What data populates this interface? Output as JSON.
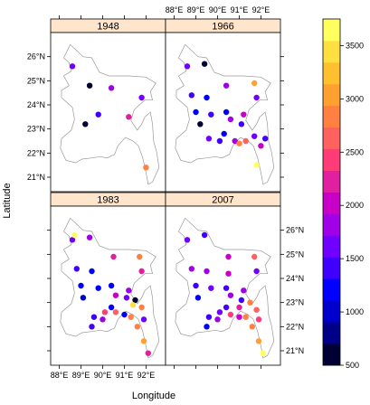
{
  "chart_data": {
    "type": "scatter",
    "xlabel": "Longitude",
    "ylabel": "Latitude",
    "xlim": [
      87.6,
      92.9
    ],
    "ylim": [
      20.4,
      27.0
    ],
    "x_ticks": [
      {
        "value": 88,
        "label": "88°E"
      },
      {
        "value": 89,
        "label": "89°E"
      },
      {
        "value": 90,
        "label": "90°E"
      },
      {
        "value": 91,
        "label": "91°E"
      },
      {
        "value": 92,
        "label": "92°E"
      }
    ],
    "y_ticks": [
      {
        "value": 21,
        "label": "21°N"
      },
      {
        "value": 22,
        "label": "22°N"
      },
      {
        "value": 23,
        "label": "23°N"
      },
      {
        "value": 24,
        "label": "24°N"
      },
      {
        "value": 25,
        "label": "25°N"
      },
      {
        "value": 26,
        "label": "26°N"
      }
    ],
    "colorbar": {
      "min": 500,
      "max": 3750,
      "ticks": [
        500,
        1000,
        1500,
        2000,
        2500,
        3000,
        3500
      ],
      "colors": [
        "#000033",
        "#000088",
        "#0000cc",
        "#0000ff",
        "#4000ff",
        "#7000ff",
        "#a000e8",
        "#c800c8",
        "#e020a0",
        "#ff3c78",
        "#ff6060",
        "#ff8040",
        "#ffa030",
        "#ffc030",
        "#ffe040",
        "#ffff60"
      ]
    },
    "panels": [
      {
        "title": "1948",
        "points": [
          {
            "lon": 88.6,
            "lat": 25.6,
            "value": 1550
          },
          {
            "lon": 89.4,
            "lat": 24.8,
            "value": 700
          },
          {
            "lon": 90.4,
            "lat": 24.7,
            "value": 1900
          },
          {
            "lon": 91.8,
            "lat": 24.3,
            "value": 1700
          },
          {
            "lon": 89.8,
            "lat": 23.6,
            "value": 1500
          },
          {
            "lon": 89.2,
            "lat": 23.2,
            "value": 600
          },
          {
            "lon": 91.2,
            "lat": 23.5,
            "value": 2300
          },
          {
            "lon": 92.0,
            "lat": 21.4,
            "value": 2900
          }
        ]
      },
      {
        "title": "1966",
        "points": [
          {
            "lon": 88.6,
            "lat": 25.6,
            "value": 1600
          },
          {
            "lon": 89.4,
            "lat": 25.7,
            "value": 600
          },
          {
            "lon": 90.4,
            "lat": 24.8,
            "value": 1800
          },
          {
            "lon": 91.7,
            "lat": 24.9,
            "value": 3000
          },
          {
            "lon": 88.8,
            "lat": 24.4,
            "value": 1400
          },
          {
            "lon": 89.5,
            "lat": 24.3,
            "value": 1200
          },
          {
            "lon": 91.8,
            "lat": 24.3,
            "value": 1700
          },
          {
            "lon": 89.0,
            "lat": 23.7,
            "value": 1300
          },
          {
            "lon": 89.7,
            "lat": 23.6,
            "value": 1500
          },
          {
            "lon": 90.4,
            "lat": 23.7,
            "value": 1200
          },
          {
            "lon": 91.2,
            "lat": 23.6,
            "value": 2000
          },
          {
            "lon": 89.2,
            "lat": 23.2,
            "value": 700
          },
          {
            "lon": 90.6,
            "lat": 23.4,
            "value": 1800
          },
          {
            "lon": 91.1,
            "lat": 23.2,
            "value": 1400
          },
          {
            "lon": 90.3,
            "lat": 22.8,
            "value": 1200
          },
          {
            "lon": 91.7,
            "lat": 22.7,
            "value": 1600
          },
          {
            "lon": 92.2,
            "lat": 22.6,
            "value": 1500
          },
          {
            "lon": 89.6,
            "lat": 22.6,
            "value": 1600
          },
          {
            "lon": 90.1,
            "lat": 22.5,
            "value": 1400
          },
          {
            "lon": 90.8,
            "lat": 22.5,
            "value": 1900
          },
          {
            "lon": 91.0,
            "lat": 22.4,
            "value": 2800
          },
          {
            "lon": 91.3,
            "lat": 22.5,
            "value": 2600
          },
          {
            "lon": 92.0,
            "lat": 22.3,
            "value": 2000
          },
          {
            "lon": 91.8,
            "lat": 21.5,
            "value": 3600
          }
        ]
      },
      {
        "title": "1983",
        "points": [
          {
            "lon": 88.6,
            "lat": 25.6,
            "value": 1600
          },
          {
            "lon": 89.4,
            "lat": 25.7,
            "value": 1800
          },
          {
            "lon": 88.7,
            "lat": 25.8,
            "value": 3600
          },
          {
            "lon": 90.5,
            "lat": 24.9,
            "value": 2300
          },
          {
            "lon": 91.7,
            "lat": 24.9,
            "value": 2900
          },
          {
            "lon": 88.8,
            "lat": 24.4,
            "value": 1400
          },
          {
            "lon": 89.5,
            "lat": 24.3,
            "value": 1200
          },
          {
            "lon": 91.8,
            "lat": 24.3,
            "value": 2200
          },
          {
            "lon": 89.0,
            "lat": 23.7,
            "value": 1300
          },
          {
            "lon": 89.8,
            "lat": 23.6,
            "value": 1200
          },
          {
            "lon": 90.4,
            "lat": 23.7,
            "value": 1200
          },
          {
            "lon": 91.2,
            "lat": 23.5,
            "value": 1900
          },
          {
            "lon": 89.1,
            "lat": 23.2,
            "value": 1100
          },
          {
            "lon": 90.6,
            "lat": 23.3,
            "value": 2100
          },
          {
            "lon": 91.1,
            "lat": 23.2,
            "value": 1700
          },
          {
            "lon": 91.5,
            "lat": 23.1,
            "value": 700
          },
          {
            "lon": 91.4,
            "lat": 22.9,
            "value": 3500
          },
          {
            "lon": 90.4,
            "lat": 22.8,
            "value": 1300
          },
          {
            "lon": 91.8,
            "lat": 22.8,
            "value": 2900
          },
          {
            "lon": 90.1,
            "lat": 22.6,
            "value": 2500
          },
          {
            "lon": 90.6,
            "lat": 22.6,
            "value": 2700
          },
          {
            "lon": 91.0,
            "lat": 22.5,
            "value": 1300
          },
          {
            "lon": 91.3,
            "lat": 22.4,
            "value": 2800
          },
          {
            "lon": 89.6,
            "lat": 22.4,
            "value": 1500
          },
          {
            "lon": 90.0,
            "lat": 22.3,
            "value": 1900
          },
          {
            "lon": 91.9,
            "lat": 22.3,
            "value": 1700
          },
          {
            "lon": 89.5,
            "lat": 22.0,
            "value": 1400
          },
          {
            "lon": 91.6,
            "lat": 22.0,
            "value": 2900
          },
          {
            "lon": 91.9,
            "lat": 21.4,
            "value": 3000
          },
          {
            "lon": 92.1,
            "lat": 20.9,
            "value": 2300
          }
        ]
      },
      {
        "title": "2007",
        "points": [
          {
            "lon": 88.6,
            "lat": 25.6,
            "value": 1600
          },
          {
            "lon": 89.4,
            "lat": 25.8,
            "value": 1500
          },
          {
            "lon": 90.5,
            "lat": 24.9,
            "value": 2100
          },
          {
            "lon": 91.7,
            "lat": 24.9,
            "value": 2700
          },
          {
            "lon": 88.8,
            "lat": 24.4,
            "value": 1800
          },
          {
            "lon": 89.5,
            "lat": 24.3,
            "value": 1900
          },
          {
            "lon": 90.5,
            "lat": 24.2,
            "value": 2000
          },
          {
            "lon": 91.8,
            "lat": 24.3,
            "value": 1600
          },
          {
            "lon": 89.0,
            "lat": 23.7,
            "value": 1400
          },
          {
            "lon": 89.7,
            "lat": 23.6,
            "value": 1700
          },
          {
            "lon": 90.4,
            "lat": 23.6,
            "value": 1500
          },
          {
            "lon": 91.2,
            "lat": 23.5,
            "value": 1800
          },
          {
            "lon": 89.1,
            "lat": 23.2,
            "value": 1200
          },
          {
            "lon": 90.6,
            "lat": 23.3,
            "value": 1900
          },
          {
            "lon": 91.1,
            "lat": 23.1,
            "value": 1500
          },
          {
            "lon": 91.5,
            "lat": 23.0,
            "value": 2800
          },
          {
            "lon": 90.4,
            "lat": 22.8,
            "value": 1400
          },
          {
            "lon": 91.0,
            "lat": 22.8,
            "value": 2200
          },
          {
            "lon": 91.8,
            "lat": 22.7,
            "value": 2600
          },
          {
            "lon": 90.1,
            "lat": 22.6,
            "value": 1600
          },
          {
            "lon": 90.6,
            "lat": 22.5,
            "value": 2500
          },
          {
            "lon": 91.0,
            "lat": 22.4,
            "value": 2000
          },
          {
            "lon": 91.3,
            "lat": 22.4,
            "value": 2900
          },
          {
            "lon": 89.6,
            "lat": 22.4,
            "value": 1500
          },
          {
            "lon": 90.0,
            "lat": 22.3,
            "value": 1800
          },
          {
            "lon": 91.9,
            "lat": 22.3,
            "value": 2400
          },
          {
            "lon": 89.5,
            "lat": 22.0,
            "value": 1300
          },
          {
            "lon": 91.6,
            "lat": 22.0,
            "value": 2800
          },
          {
            "lon": 91.9,
            "lat": 21.4,
            "value": 3000
          },
          {
            "lon": 92.1,
            "lat": 20.9,
            "value": 3700
          }
        ]
      }
    ],
    "outline": [
      [
        88.05,
        22.2
      ],
      [
        88.1,
        22.6
      ],
      [
        88.55,
        22.95
      ],
      [
        88.7,
        23.4
      ],
      [
        88.6,
        23.9
      ],
      [
        88.1,
        24.3
      ],
      [
        88.1,
        24.6
      ],
      [
        88.45,
        24.8
      ],
      [
        88.2,
        25.2
      ],
      [
        88.55,
        25.4
      ],
      [
        88.45,
        25.75
      ],
      [
        88.2,
        25.95
      ],
      [
        88.5,
        26.5
      ],
      [
        88.8,
        26.25
      ],
      [
        89.1,
        26.0
      ],
      [
        89.5,
        25.95
      ],
      [
        89.85,
        25.35
      ],
      [
        90.3,
        25.2
      ],
      [
        91.2,
        25.2
      ],
      [
        92.0,
        25.15
      ],
      [
        92.45,
        24.9
      ],
      [
        92.2,
        24.55
      ],
      [
        92.3,
        24.2
      ],
      [
        91.95,
        24.2
      ],
      [
        91.7,
        24.0
      ],
      [
        91.45,
        23.8
      ],
      [
        91.3,
        23.35
      ],
      [
        91.6,
        22.95
      ],
      [
        91.8,
        23.2
      ],
      [
        91.95,
        23.5
      ],
      [
        92.2,
        23.7
      ],
      [
        92.3,
        23.2
      ],
      [
        92.35,
        22.5
      ],
      [
        92.5,
        22.0
      ],
      [
        92.6,
        21.4
      ],
      [
        92.3,
        20.8
      ],
      [
        92.1,
        20.7
      ],
      [
        92.0,
        21.2
      ],
      [
        91.85,
        21.8
      ],
      [
        91.65,
        22.3
      ],
      [
        91.4,
        22.5
      ],
      [
        91.05,
        22.65
      ],
      [
        90.7,
        22.3
      ],
      [
        90.55,
        21.95
      ],
      [
        90.2,
        21.8
      ],
      [
        89.9,
        21.85
      ],
      [
        89.5,
        21.8
      ],
      [
        89.05,
        21.75
      ],
      [
        88.75,
        21.6
      ],
      [
        88.3,
        21.7
      ],
      [
        88.05,
        22.2
      ]
    ]
  }
}
